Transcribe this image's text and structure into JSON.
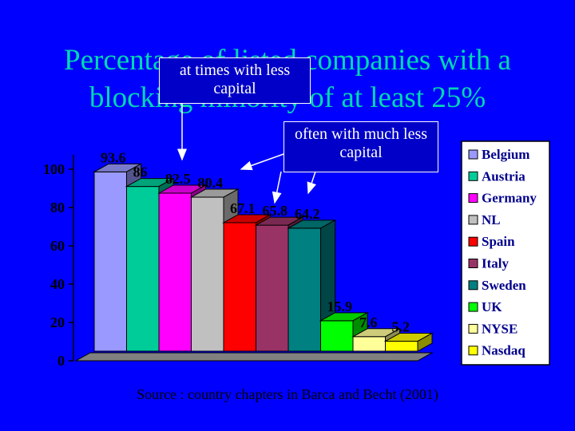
{
  "title": "Percentage of listed companies with a blocking minority of at least 25%",
  "callout_1": "at times with less capital",
  "callout_2": "often with much less capital",
  "source": "Source : country chapters in Barca and Becht (2001)",
  "chart_data": {
    "type": "bar",
    "categories": [
      "Belgium",
      "Austria",
      "Germany",
      "NL",
      "Spain",
      "Italy",
      "Sweden",
      "UK",
      "NYSE",
      "Nasdaq"
    ],
    "values": [
      93.6,
      86,
      82.5,
      80.4,
      67.1,
      65.8,
      64.2,
      15.9,
      7.6,
      5.2
    ],
    "data_labels": [
      "93.6",
      "86",
      "82.5",
      "80.4",
      "67.1",
      "65.8",
      "64.2",
      "15.9",
      "7.6",
      "5.2"
    ],
    "colors": [
      "#9999ff",
      "#00cc99",
      "#ff00ff",
      "#c0c0c0",
      "#ff0000",
      "#993366",
      "#008080",
      "#00ff00",
      "#ffff99",
      "#ffff00"
    ],
    "ylim": [
      0,
      100
    ],
    "yticks": [
      "0",
      "20",
      "40",
      "60",
      "80",
      "100"
    ],
    "legend": "right",
    "style": "3d"
  }
}
